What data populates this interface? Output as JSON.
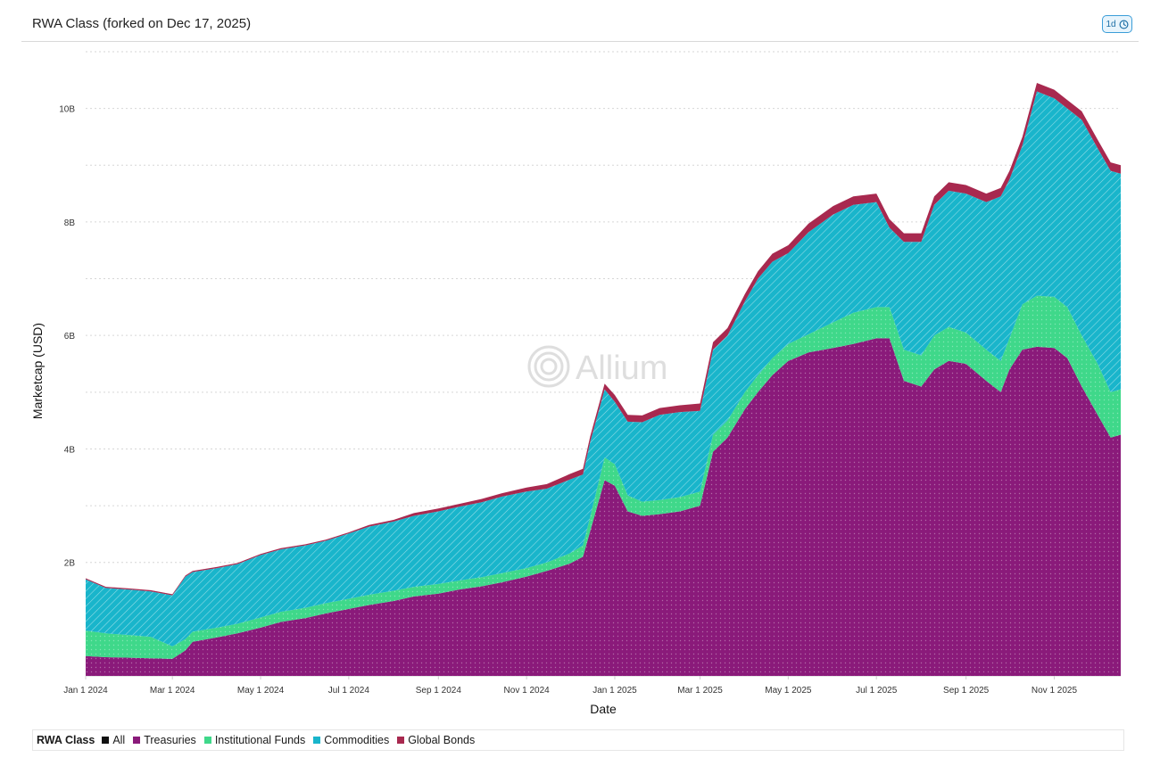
{
  "header": {
    "title": "RWA Class (forked on Dec 17, 2025)",
    "interval_label": "1d"
  },
  "watermark": "Allium",
  "legend": {
    "title": "RWA Class",
    "items": [
      {
        "label": "All",
        "color": "#111111"
      },
      {
        "label": "Treasuries",
        "color": "#8a1a7a"
      },
      {
        "label": "Institutional Funds",
        "color": "#3fd88a"
      },
      {
        "label": "Commodities",
        "color": "#19b5cb"
      },
      {
        "label": "Global Bonds",
        "color": "#a8294f"
      }
    ]
  },
  "chart_data": {
    "type": "area",
    "stacked": true,
    "title": "",
    "xlabel": "Date",
    "ylabel": "Marketcap (USD)",
    "ylim": [
      0,
      11
    ],
    "y_ticks": [
      {
        "value": 2,
        "label": "2B"
      },
      {
        "value": 4,
        "label": "4B"
      },
      {
        "value": 6,
        "label": "6B"
      },
      {
        "value": 8,
        "label": "8B"
      },
      {
        "value": 10,
        "label": "10B"
      }
    ],
    "x_range": [
      "2024-01-01",
      "2025-12-17"
    ],
    "x_ticks": [
      {
        "date": "2024-01-01",
        "label": "Jan 1 2024"
      },
      {
        "date": "2024-03-01",
        "label": "Mar 1 2024"
      },
      {
        "date": "2024-05-01",
        "label": "May 1 2024"
      },
      {
        "date": "2024-07-01",
        "label": "Jul 1 2024"
      },
      {
        "date": "2024-09-01",
        "label": "Sep 1 2024"
      },
      {
        "date": "2024-11-01",
        "label": "Nov 1 2024"
      },
      {
        "date": "2025-01-01",
        "label": "Jan 1 2025"
      },
      {
        "date": "2025-03-01",
        "label": "Mar 1 2025"
      },
      {
        "date": "2025-05-01",
        "label": "May 1 2025"
      },
      {
        "date": "2025-07-01",
        "label": "Jul 1 2025"
      },
      {
        "date": "2025-09-01",
        "label": "Sep 1 2025"
      },
      {
        "date": "2025-11-01",
        "label": "Nov 1 2025"
      }
    ],
    "grid": true,
    "legend_position": "bottom",
    "series_order_bottom_to_top": [
      "Treasuries",
      "Institutional Funds",
      "Commodities",
      "Global Bonds"
    ],
    "dates": [
      "2024-01-01",
      "2024-01-15",
      "2024-02-01",
      "2024-02-15",
      "2024-03-01",
      "2024-03-10",
      "2024-03-15",
      "2024-04-01",
      "2024-04-15",
      "2024-05-01",
      "2024-05-15",
      "2024-06-01",
      "2024-06-15",
      "2024-07-01",
      "2024-07-15",
      "2024-08-01",
      "2024-08-15",
      "2024-09-01",
      "2024-09-15",
      "2024-10-01",
      "2024-10-15",
      "2024-11-01",
      "2024-11-15",
      "2024-12-01",
      "2024-12-10",
      "2024-12-15",
      "2024-12-25",
      "2025-01-01",
      "2025-01-10",
      "2025-01-20",
      "2025-02-01",
      "2025-02-15",
      "2025-03-01",
      "2025-03-10",
      "2025-03-20",
      "2025-04-01",
      "2025-04-10",
      "2025-04-20",
      "2025-05-01",
      "2025-05-15",
      "2025-06-01",
      "2025-06-15",
      "2025-07-01",
      "2025-07-10",
      "2025-07-20",
      "2025-08-01",
      "2025-08-10",
      "2025-08-20",
      "2025-09-01",
      "2025-09-15",
      "2025-09-25",
      "2025-10-01",
      "2025-10-10",
      "2025-10-20",
      "2025-11-01",
      "2025-11-10",
      "2025-11-20",
      "2025-12-01",
      "2025-12-10",
      "2025-12-17"
    ],
    "series": [
      {
        "name": "Treasuries",
        "color": "#8a1a7a",
        "values": [
          0.35,
          0.33,
          0.32,
          0.31,
          0.3,
          0.45,
          0.6,
          0.68,
          0.75,
          0.85,
          0.95,
          1.02,
          1.1,
          1.18,
          1.25,
          1.32,
          1.4,
          1.45,
          1.52,
          1.58,
          1.65,
          1.75,
          1.85,
          1.98,
          2.1,
          2.55,
          3.45,
          3.35,
          2.9,
          2.82,
          2.85,
          2.9,
          3.0,
          3.95,
          4.2,
          4.7,
          5.0,
          5.3,
          5.55,
          5.7,
          5.78,
          5.85,
          5.95,
          5.95,
          5.2,
          5.1,
          5.4,
          5.55,
          5.5,
          5.2,
          5.0,
          5.4,
          5.75,
          5.8,
          5.78,
          5.6,
          5.1,
          4.6,
          4.2,
          4.25
        ]
      },
      {
        "name": "Institutional Funds",
        "color": "#3fd88a",
        "values": [
          0.45,
          0.42,
          0.4,
          0.38,
          0.22,
          0.2,
          0.18,
          0.17,
          0.17,
          0.18,
          0.18,
          0.18,
          0.18,
          0.18,
          0.18,
          0.18,
          0.17,
          0.17,
          0.16,
          0.16,
          0.16,
          0.15,
          0.15,
          0.18,
          0.2,
          0.25,
          0.4,
          0.38,
          0.28,
          0.25,
          0.25,
          0.25,
          0.25,
          0.3,
          0.3,
          0.3,
          0.3,
          0.3,
          0.3,
          0.32,
          0.45,
          0.55,
          0.55,
          0.55,
          0.55,
          0.55,
          0.6,
          0.6,
          0.55,
          0.55,
          0.55,
          0.55,
          0.8,
          0.9,
          0.9,
          0.9,
          0.9,
          0.9,
          0.8,
          0.8
        ]
      },
      {
        "name": "Commodities",
        "color": "#19b5cb",
        "values": [
          0.9,
          0.8,
          0.8,
          0.8,
          0.9,
          1.1,
          1.05,
          1.05,
          1.05,
          1.1,
          1.1,
          1.1,
          1.1,
          1.15,
          1.2,
          1.22,
          1.25,
          1.28,
          1.3,
          1.32,
          1.35,
          1.35,
          1.3,
          1.3,
          1.25,
          1.32,
          1.2,
          1.1,
          1.3,
          1.4,
          1.5,
          1.5,
          1.42,
          1.5,
          1.5,
          1.6,
          1.7,
          1.7,
          1.6,
          1.8,
          1.9,
          1.9,
          1.85,
          1.4,
          1.9,
          2.0,
          2.3,
          2.4,
          2.45,
          2.6,
          2.9,
          2.8,
          2.8,
          3.6,
          3.5,
          3.5,
          3.8,
          3.8,
          3.9,
          3.8
        ]
      },
      {
        "name": "Global Bonds",
        "color": "#a8294f",
        "values": [
          0.02,
          0.02,
          0.02,
          0.02,
          0.02,
          0.02,
          0.02,
          0.02,
          0.02,
          0.02,
          0.02,
          0.02,
          0.02,
          0.02,
          0.03,
          0.03,
          0.05,
          0.05,
          0.05,
          0.06,
          0.06,
          0.07,
          0.08,
          0.1,
          0.1,
          0.1,
          0.1,
          0.12,
          0.12,
          0.12,
          0.12,
          0.12,
          0.13,
          0.13,
          0.13,
          0.13,
          0.13,
          0.14,
          0.14,
          0.15,
          0.15,
          0.15,
          0.15,
          0.15,
          0.15,
          0.15,
          0.15,
          0.15,
          0.15,
          0.15,
          0.15,
          0.15,
          0.15,
          0.15,
          0.15,
          0.15,
          0.15,
          0.15,
          0.15,
          0.15
        ]
      }
    ]
  }
}
